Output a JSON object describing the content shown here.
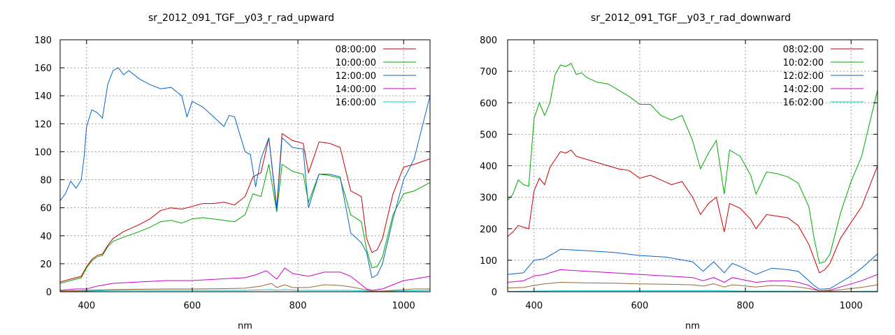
{
  "chart_data": [
    {
      "type": "line",
      "title": "sr_2012_091_TGF__y03_r_rad_upward",
      "xlabel": "nm",
      "ylabel": "",
      "xlim": [
        350,
        1050
      ],
      "ylim": [
        0,
        180
      ],
      "xticks": [
        400,
        600,
        800,
        1000
      ],
      "yticks": [
        0,
        20,
        40,
        60,
        80,
        100,
        120,
        140,
        160,
        180
      ],
      "grid": true,
      "legend": "top-right",
      "series": [
        {
          "name": "08:00:00",
          "color": "#cc0000",
          "x": [
            350,
            370,
            390,
            400,
            410,
            420,
            430,
            440,
            450,
            470,
            500,
            520,
            540,
            560,
            580,
            600,
            620,
            640,
            660,
            680,
            700,
            715,
            730,
            745,
            760,
            770,
            790,
            810,
            820,
            840,
            860,
            880,
            900,
            920,
            930,
            940,
            950,
            960,
            980,
            1000,
            1020,
            1050
          ],
          "y": [
            7,
            9,
            11,
            18,
            23,
            26,
            27,
            33,
            38,
            43,
            48,
            52,
            58,
            60,
            59,
            61,
            63,
            63,
            64,
            62,
            68,
            82,
            85,
            110,
            60,
            113,
            108,
            106,
            85,
            107,
            106,
            103,
            72,
            68,
            38,
            28,
            30,
            38,
            70,
            89,
            91,
            95
          ]
        },
        {
          "name": "10:00:00",
          "color": "#00aa00",
          "x": [
            350,
            370,
            390,
            400,
            410,
            420,
            430,
            440,
            450,
            470,
            500,
            520,
            540,
            560,
            580,
            600,
            620,
            640,
            660,
            680,
            700,
            715,
            730,
            745,
            760,
            770,
            790,
            810,
            820,
            840,
            860,
            880,
            900,
            920,
            930,
            940,
            950,
            960,
            980,
            1000,
            1020,
            1050
          ],
          "y": [
            6,
            8,
            10,
            17,
            22,
            25,
            26,
            32,
            36,
            39,
            43,
            46,
            50,
            51,
            49,
            52,
            53,
            52,
            51,
            50,
            55,
            70,
            68,
            91,
            57,
            91,
            86,
            84,
            64,
            84,
            83,
            81,
            55,
            50,
            30,
            17,
            18,
            25,
            55,
            70,
            72,
            78
          ]
        },
        {
          "name": "12:00:00",
          "color": "#0066cc",
          "x": [
            350,
            360,
            370,
            380,
            390,
            395,
            400,
            410,
            420,
            430,
            440,
            450,
            460,
            470,
            480,
            500,
            520,
            540,
            560,
            580,
            590,
            600,
            620,
            640,
            660,
            670,
            680,
            700,
            710,
            720,
            730,
            745,
            760,
            770,
            790,
            810,
            820,
            840,
            860,
            880,
            900,
            920,
            930,
            940,
            950,
            960,
            980,
            1000,
            1020,
            1050
          ],
          "y": [
            65,
            70,
            79,
            74,
            80,
            95,
            118,
            130,
            128,
            124,
            148,
            158,
            160,
            155,
            158,
            152,
            148,
            145,
            146,
            140,
            125,
            136,
            132,
            125,
            118,
            126,
            125,
            100,
            98,
            75,
            95,
            110,
            58,
            110,
            103,
            102,
            60,
            84,
            84,
            82,
            42,
            35,
            28,
            10,
            12,
            20,
            52,
            80,
            95,
            140
          ]
        },
        {
          "name": "14:00:00",
          "color": "#cc00cc",
          "x": [
            350,
            380,
            400,
            420,
            450,
            500,
            550,
            600,
            650,
            700,
            720,
            740,
            760,
            775,
            790,
            820,
            850,
            880,
            900,
            920,
            930,
            940,
            960,
            980,
            1000,
            1020,
            1050
          ],
          "y": [
            1,
            2,
            2,
            4,
            6,
            7,
            8,
            8,
            9,
            10,
            12,
            15,
            9,
            17,
            13,
            11,
            14,
            14,
            11,
            5,
            2,
            1,
            2,
            5,
            8,
            9,
            11
          ]
        },
        {
          "name": "16:00:00",
          "color": "#00cccc",
          "x": [
            350,
            400,
            450,
            500,
            550,
            600,
            650,
            700,
            750,
            760,
            775,
            800,
            850,
            900,
            940,
            980,
            1050
          ],
          "y": [
            0,
            0.5,
            1,
            1,
            1,
            1,
            1,
            1,
            1.5,
            1,
            1.5,
            1,
            1,
            1,
            0.3,
            0.5,
            1
          ]
        },
        {
          "name": "",
          "color": "#996633",
          "x": [
            350,
            400,
            450,
            500,
            550,
            600,
            650,
            700,
            730,
            750,
            760,
            775,
            790,
            820,
            850,
            880,
            900,
            920,
            940,
            960,
            980,
            1000,
            1020,
            1050
          ],
          "y": [
            0.5,
            1,
            1.5,
            1.8,
            2,
            2,
            2.2,
            2.5,
            4,
            6,
            3,
            5,
            3,
            3,
            5,
            4.5,
            3.5,
            2,
            0.5,
            0.5,
            1,
            1.5,
            2,
            2
          ]
        }
      ]
    },
    {
      "type": "line",
      "title": "sr_2012_091_TGF__y03_r_rad_downward",
      "xlabel": "nm",
      "ylabel": "",
      "xlim": [
        350,
        1050
      ],
      "ylim": [
        0,
        800
      ],
      "xticks": [
        400,
        600,
        800,
        1000
      ],
      "yticks": [
        0,
        100,
        200,
        300,
        400,
        500,
        600,
        700,
        800
      ],
      "grid": true,
      "legend": "top-right",
      "series": [
        {
          "name": "08:02:00",
          "color": "#cc0000",
          "x": [
            350,
            360,
            370,
            380,
            390,
            400,
            410,
            420,
            430,
            440,
            450,
            460,
            470,
            480,
            500,
            520,
            540,
            560,
            580,
            600,
            620,
            640,
            660,
            680,
            700,
            715,
            730,
            745,
            760,
            770,
            790,
            810,
            820,
            840,
            860,
            880,
            900,
            920,
            930,
            940,
            950,
            960,
            980,
            1000,
            1020,
            1050
          ],
          "y": [
            175,
            190,
            210,
            205,
            200,
            320,
            360,
            340,
            395,
            420,
            445,
            440,
            450,
            430,
            420,
            410,
            400,
            390,
            385,
            360,
            370,
            355,
            340,
            350,
            300,
            245,
            280,
            300,
            190,
            280,
            265,
            230,
            200,
            245,
            240,
            235,
            210,
            150,
            105,
            60,
            70,
            90,
            170,
            220,
            270,
            400
          ]
        },
        {
          "name": "10:02:00",
          "color": "#00aa00",
          "x": [
            350,
            360,
            370,
            380,
            390,
            400,
            410,
            420,
            430,
            440,
            450,
            460,
            470,
            480,
            490,
            500,
            520,
            540,
            560,
            580,
            600,
            620,
            640,
            660,
            680,
            700,
            715,
            730,
            745,
            760,
            770,
            790,
            810,
            820,
            840,
            860,
            880,
            900,
            920,
            930,
            940,
            950,
            960,
            980,
            1000,
            1020,
            1050
          ],
          "y": [
            290,
            310,
            355,
            340,
            335,
            550,
            600,
            560,
            600,
            690,
            720,
            715,
            725,
            690,
            695,
            680,
            665,
            660,
            640,
            620,
            595,
            595,
            560,
            545,
            560,
            480,
            390,
            440,
            480,
            310,
            450,
            430,
            370,
            310,
            380,
            375,
            365,
            345,
            270,
            170,
            90,
            95,
            120,
            250,
            350,
            430,
            640
          ]
        },
        {
          "name": "12:02:00",
          "color": "#0066cc",
          "x": [
            350,
            380,
            400,
            420,
            450,
            500,
            550,
            600,
            650,
            700,
            720,
            740,
            760,
            775,
            790,
            820,
            850,
            880,
            900,
            920,
            930,
            940,
            960,
            980,
            1000,
            1020,
            1050
          ],
          "y": [
            55,
            60,
            100,
            105,
            135,
            130,
            125,
            115,
            110,
            95,
            65,
            95,
            60,
            90,
            80,
            55,
            75,
            70,
            65,
            35,
            20,
            8,
            10,
            30,
            50,
            75,
            120
          ]
        },
        {
          "name": "14:02:00",
          "color": "#cc00cc",
          "x": [
            350,
            380,
            400,
            420,
            450,
            500,
            550,
            600,
            650,
            700,
            720,
            740,
            760,
            775,
            790,
            820,
            850,
            880,
            900,
            920,
            930,
            940,
            960,
            980,
            1000,
            1020,
            1050
          ],
          "y": [
            30,
            35,
            50,
            55,
            70,
            65,
            60,
            55,
            50,
            45,
            35,
            45,
            30,
            45,
            40,
            30,
            35,
            35,
            30,
            20,
            10,
            3,
            5,
            15,
            25,
            35,
            55
          ]
        },
        {
          "name": "16:02:00",
          "color": "#00cccc",
          "x": [
            350,
            400,
            450,
            500,
            550,
            600,
            650,
            700,
            750,
            800,
            850,
            900,
            940,
            980,
            1050
          ],
          "y": [
            1,
            2,
            3,
            3,
            3,
            3,
            3,
            3,
            3,
            2,
            2,
            2,
            1,
            1,
            2
          ]
        },
        {
          "name": "",
          "color": "#996633",
          "x": [
            350,
            380,
            400,
            420,
            450,
            500,
            550,
            600,
            650,
            700,
            720,
            740,
            760,
            775,
            790,
            820,
            850,
            880,
            900,
            920,
            940,
            960,
            980,
            1000,
            1020,
            1050
          ],
          "y": [
            12,
            14,
            20,
            25,
            30,
            28,
            27,
            25,
            24,
            22,
            18,
            25,
            15,
            22,
            20,
            15,
            20,
            18,
            15,
            10,
            3,
            3,
            6,
            10,
            14,
            22
          ]
        }
      ]
    }
  ]
}
